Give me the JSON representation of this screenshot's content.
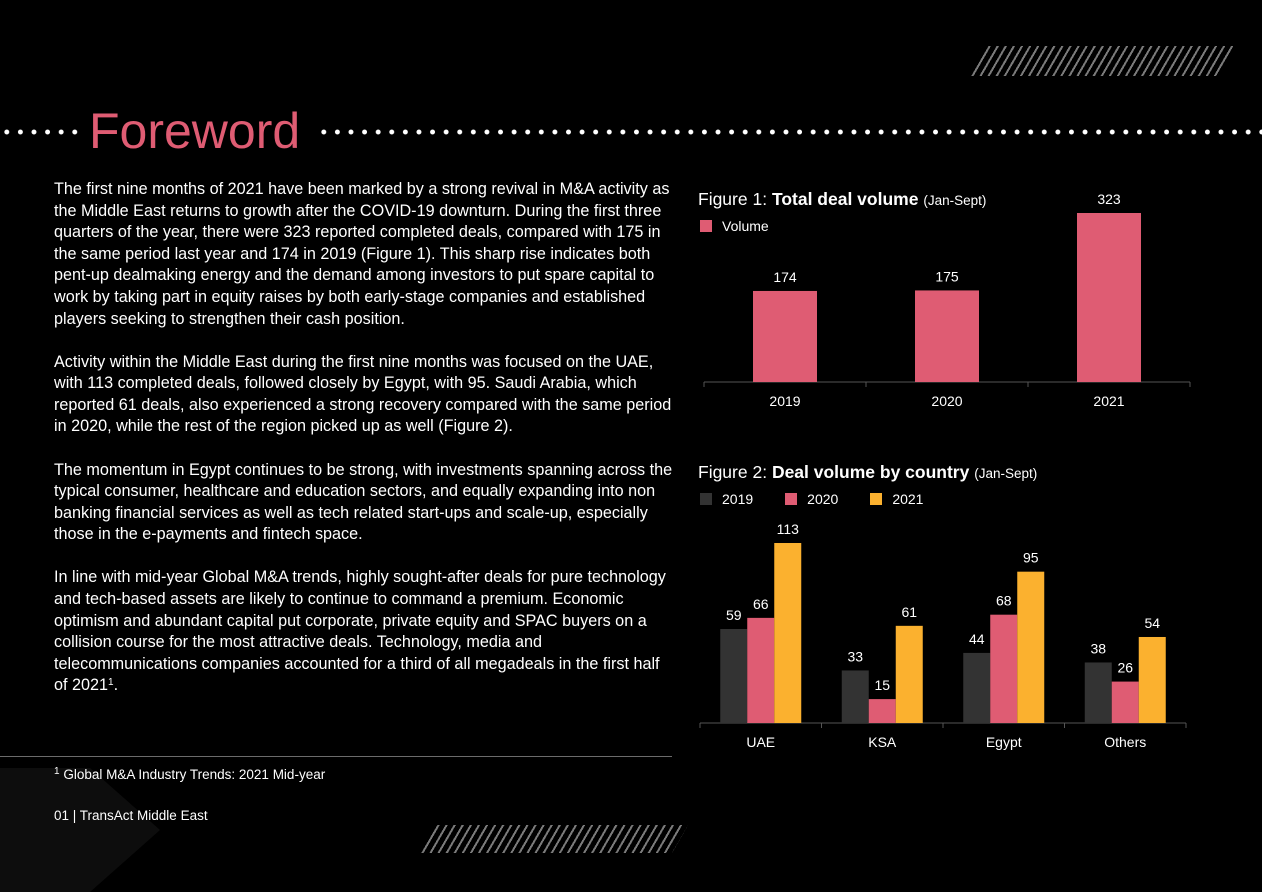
{
  "page": {
    "title": "Foreword",
    "paragraphs": [
      "The first nine months of 2021 have been marked by a strong revival in M&A activity as the Middle East returns to growth after the COVID-19 downturn. During the first three quarters of the year, there were 323 reported completed deals, compared with 175 in the same period last year and 174 in 2019 (Figure 1). This sharp rise indicates both pent-up dealmaking energy and the demand among investors to put spare capital to work by taking part in equity raises by both early-stage companies and established players seeking to strengthen their cash position.",
      "Activity within the Middle East during the first nine months was focused on the UAE, with 113 completed deals, followed closely by Egypt, with 95. Saudi Arabia, which reported 61 deals, also experienced a strong recovery compared with the same period in 2020, while the rest of the region picked up as well (Figure 2).",
      "The momentum in Egypt continues to be strong, with investments spanning across the typical consumer, healthcare and education sectors, and equally expanding into non banking financial services as well as tech related start-ups and scale-up, especially those in the e-payments and fintech space.",
      "In line with mid-year Global M&A trends,  highly sought-after deals for pure technology and tech-based assets are likely to continue to command a premium. Economic optimism and abundant capital put corporate, private equity and SPAC buyers on a collision course for the most attractive deals. Technology, media and telecommunications companies accounted for a third of all megadeals in the first half of 2021"
    ],
    "footnote_mark": "1",
    "footnote_text": "Global M&A Industry Trends: 2021 Mid-year",
    "footer": "01 | TransAct Middle East"
  },
  "colors": {
    "accent": "#df5c73",
    "series_2019": "#333333",
    "series_2020": "#df5c73",
    "series_2021": "#fbb12f"
  },
  "chart_data": [
    {
      "type": "bar",
      "title_prefix": "Figure 1: ",
      "title": "Total deal volume",
      "title_suffix": "(Jan-Sept)",
      "categories": [
        "2019",
        "2020",
        "2021"
      ],
      "series": [
        {
          "name": "Volume",
          "values": [
            174,
            175,
            323
          ]
        }
      ],
      "ylim": [
        0,
        323
      ],
      "legend": "top-left",
      "grid": false
    },
    {
      "type": "bar",
      "title_prefix": "Figure 2: ",
      "title": "Deal volume by country",
      "title_suffix": "(Jan-Sept)",
      "categories": [
        "UAE",
        "KSA",
        "Egypt",
        "Others"
      ],
      "series": [
        {
          "name": "2019",
          "values": [
            59,
            33,
            44,
            38
          ]
        },
        {
          "name": "2020",
          "values": [
            66,
            15,
            68,
            26
          ]
        },
        {
          "name": "2021",
          "values": [
            113,
            61,
            95,
            54
          ]
        }
      ],
      "ylim": [
        0,
        113
      ],
      "legend": "top-left",
      "grid": false
    }
  ]
}
